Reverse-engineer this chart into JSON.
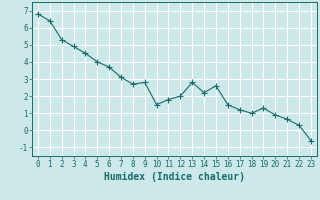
{
  "x": [
    0,
    1,
    2,
    3,
    4,
    5,
    6,
    7,
    8,
    9,
    10,
    11,
    12,
    13,
    14,
    15,
    16,
    17,
    18,
    19,
    20,
    21,
    22,
    23
  ],
  "y": [
    6.8,
    6.4,
    5.3,
    4.9,
    4.5,
    4.0,
    3.7,
    3.1,
    2.7,
    2.8,
    1.5,
    1.8,
    2.0,
    2.8,
    2.2,
    2.6,
    1.5,
    1.2,
    1.0,
    1.3,
    0.9,
    0.65,
    0.3,
    -0.6
  ],
  "line_color": "#1a6b6b",
  "marker": "+",
  "marker_size": 4,
  "bg_color": "#cce8e8",
  "grid_color": "#ffffff",
  "xlabel": "Humidex (Indice chaleur)",
  "ylim": [
    -1.5,
    7.5
  ],
  "xlim": [
    -0.5,
    23.5
  ],
  "yticks": [
    -1,
    0,
    1,
    2,
    3,
    4,
    5,
    6,
    7
  ],
  "xticks": [
    0,
    1,
    2,
    3,
    4,
    5,
    6,
    7,
    8,
    9,
    10,
    11,
    12,
    13,
    14,
    15,
    16,
    17,
    18,
    19,
    20,
    21,
    22,
    23
  ],
  "tick_fontsize": 5.5,
  "xlabel_fontsize": 7.0
}
